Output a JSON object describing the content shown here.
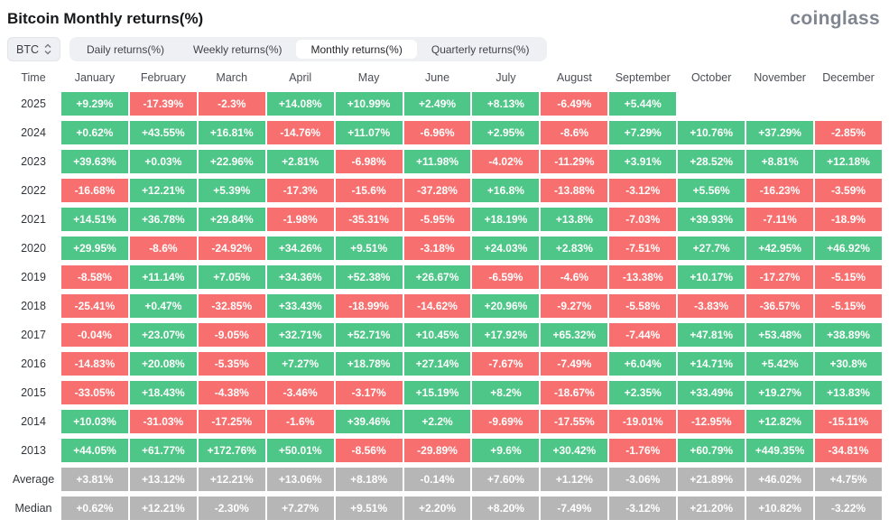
{
  "page": {
    "title": "Bitcoin Monthly returns(%)",
    "logo": "coinglass"
  },
  "controls": {
    "symbol": "BTC",
    "symbol_icon": "chevron-up-down-icon",
    "tabs": [
      {
        "label": "Daily returns(%)",
        "active": false
      },
      {
        "label": "Weekly returns(%)",
        "active": false
      },
      {
        "label": "Monthly returns(%)",
        "active": true
      },
      {
        "label": "Quarterly returns(%)",
        "active": false
      }
    ]
  },
  "chart_data": {
    "type": "heatmap",
    "title": "Bitcoin Monthly returns(%)",
    "columns": [
      "Time",
      "January",
      "February",
      "March",
      "April",
      "May",
      "June",
      "July",
      "August",
      "September",
      "October",
      "November",
      "December"
    ],
    "rows": [
      {
        "label": "2025",
        "summary": false,
        "values": [
          "+9.29%",
          "-17.39%",
          "-2.3%",
          "+14.08%",
          "+10.99%",
          "+2.49%",
          "+8.13%",
          "-6.49%",
          "+5.44%",
          "",
          "",
          ""
        ]
      },
      {
        "label": "2024",
        "summary": false,
        "values": [
          "+0.62%",
          "+43.55%",
          "+16.81%",
          "-14.76%",
          "+11.07%",
          "-6.96%",
          "+2.95%",
          "-8.6%",
          "+7.29%",
          "+10.76%",
          "+37.29%",
          "-2.85%"
        ]
      },
      {
        "label": "2023",
        "summary": false,
        "values": [
          "+39.63%",
          "+0.03%",
          "+22.96%",
          "+2.81%",
          "-6.98%",
          "+11.98%",
          "-4.02%",
          "-11.29%",
          "+3.91%",
          "+28.52%",
          "+8.81%",
          "+12.18%"
        ]
      },
      {
        "label": "2022",
        "summary": false,
        "values": [
          "-16.68%",
          "+12.21%",
          "+5.39%",
          "-17.3%",
          "-15.6%",
          "-37.28%",
          "+16.8%",
          "-13.88%",
          "-3.12%",
          "+5.56%",
          "-16.23%",
          "-3.59%"
        ]
      },
      {
        "label": "2021",
        "summary": false,
        "values": [
          "+14.51%",
          "+36.78%",
          "+29.84%",
          "-1.98%",
          "-35.31%",
          "-5.95%",
          "+18.19%",
          "+13.8%",
          "-7.03%",
          "+39.93%",
          "-7.11%",
          "-18.9%"
        ]
      },
      {
        "label": "2020",
        "summary": false,
        "values": [
          "+29.95%",
          "-8.6%",
          "-24.92%",
          "+34.26%",
          "+9.51%",
          "-3.18%",
          "+24.03%",
          "+2.83%",
          "-7.51%",
          "+27.7%",
          "+42.95%",
          "+46.92%"
        ]
      },
      {
        "label": "2019",
        "summary": false,
        "values": [
          "-8.58%",
          "+11.14%",
          "+7.05%",
          "+34.36%",
          "+52.38%",
          "+26.67%",
          "-6.59%",
          "-4.6%",
          "-13.38%",
          "+10.17%",
          "-17.27%",
          "-5.15%"
        ]
      },
      {
        "label": "2018",
        "summary": false,
        "values": [
          "-25.41%",
          "+0.47%",
          "-32.85%",
          "+33.43%",
          "-18.99%",
          "-14.62%",
          "+20.96%",
          "-9.27%",
          "-5.58%",
          "-3.83%",
          "-36.57%",
          "-5.15%"
        ]
      },
      {
        "label": "2017",
        "summary": false,
        "values": [
          "-0.04%",
          "+23.07%",
          "-9.05%",
          "+32.71%",
          "+52.71%",
          "+10.45%",
          "+17.92%",
          "+65.32%",
          "-7.44%",
          "+47.81%",
          "+53.48%",
          "+38.89%"
        ]
      },
      {
        "label": "2016",
        "summary": false,
        "values": [
          "-14.83%",
          "+20.08%",
          "-5.35%",
          "+7.27%",
          "+18.78%",
          "+27.14%",
          "-7.67%",
          "-7.49%",
          "+6.04%",
          "+14.71%",
          "+5.42%",
          "+30.8%"
        ]
      },
      {
        "label": "2015",
        "summary": false,
        "values": [
          "-33.05%",
          "+18.43%",
          "-4.38%",
          "-3.46%",
          "-3.17%",
          "+15.19%",
          "+8.2%",
          "-18.67%",
          "+2.35%",
          "+33.49%",
          "+19.27%",
          "+13.83%"
        ]
      },
      {
        "label": "2014",
        "summary": false,
        "values": [
          "+10.03%",
          "-31.03%",
          "-17.25%",
          "-1.6%",
          "+39.46%",
          "+2.2%",
          "-9.69%",
          "-17.55%",
          "-19.01%",
          "-12.95%",
          "+12.82%",
          "-15.11%"
        ]
      },
      {
        "label": "2013",
        "summary": false,
        "values": [
          "+44.05%",
          "+61.77%",
          "+172.76%",
          "+50.01%",
          "-8.56%",
          "-29.89%",
          "+9.6%",
          "+30.42%",
          "-1.76%",
          "+60.79%",
          "+449.35%",
          "-34.81%"
        ]
      },
      {
        "label": "Average",
        "summary": true,
        "values": [
          "+3.81%",
          "+13.12%",
          "+12.21%",
          "+13.06%",
          "+8.18%",
          "-0.14%",
          "+7.60%",
          "+1.12%",
          "-3.06%",
          "+21.89%",
          "+46.02%",
          "+4.75%"
        ]
      },
      {
        "label": "Median",
        "summary": true,
        "values": [
          "+0.62%",
          "+12.21%",
          "-2.30%",
          "+7.27%",
          "+9.51%",
          "+2.20%",
          "+8.20%",
          "-7.49%",
          "-3.12%",
          "+21.20%",
          "+10.82%",
          "-3.22%"
        ]
      }
    ],
    "colors": {
      "positive": "#4DC687",
      "negative": "#F7706F",
      "summary": "#B6B6B6",
      "cell_text": "#FFFFFF"
    },
    "layout": {
      "legend": false,
      "grid": false,
      "summary_rows": [
        "Average",
        "Median"
      ]
    }
  }
}
